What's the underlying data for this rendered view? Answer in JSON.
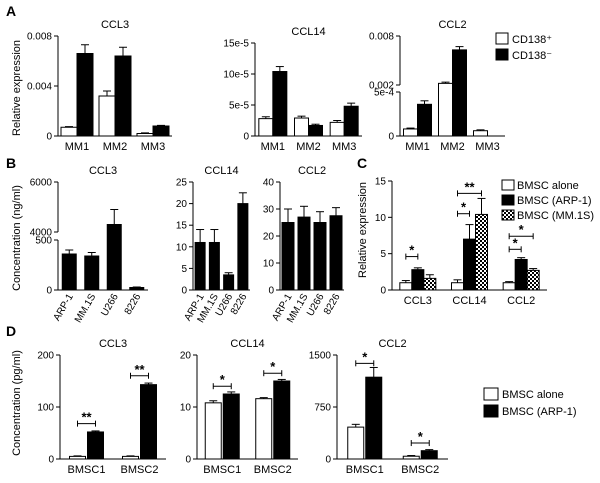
{
  "panels": {
    "A": {
      "label": "A",
      "ylabel": "Relative expression",
      "legend": [
        {
          "name": "CD138⁺",
          "style": "open"
        },
        {
          "name": "CD138⁻",
          "style": "filled"
        }
      ]
    },
    "B": {
      "label": "B",
      "ylabel": "Concentration (ng/ml)"
    },
    "C": {
      "label": "C",
      "ylabel": "Relative expression",
      "legend": [
        {
          "name": "BMSC alone",
          "style": "open"
        },
        {
          "name": "BMSC (ARP-1)",
          "style": "filled"
        },
        {
          "name": "BMSC (MM.1S)",
          "style": "checker"
        }
      ]
    },
    "D": {
      "label": "D",
      "ylabel": "Concentration (pg/ml)",
      "legend": [
        {
          "name": "BMSC alone",
          "style": "open"
        },
        {
          "name": "BMSC (ARP-1)",
          "style": "filled"
        }
      ]
    }
  },
  "chart_data": [
    {
      "id": "A1",
      "panel": "A",
      "type": "bar",
      "title": "CCL3",
      "categories": [
        "MM1",
        "MM2",
        "MM3"
      ],
      "series": [
        {
          "name": "CD138⁺",
          "values": [
            0.0007,
            0.0032,
            0.0002
          ],
          "errors": [
            5e-05,
            0.0004,
            5e-05
          ]
        },
        {
          "name": "CD138⁻",
          "values": [
            0.0066,
            0.0064,
            0.0008
          ],
          "errors": [
            0.0007,
            0.0007,
            5e-05
          ]
        }
      ],
      "ylim": [
        0,
        0.008
      ],
      "yticks": [
        0,
        0.004,
        0.008
      ],
      "yticklabels": [
        "0",
        "0.004",
        "0.008"
      ]
    },
    {
      "id": "A2",
      "panel": "A",
      "type": "bar",
      "title": "CCL14",
      "categories": [
        "MM1",
        "MM2",
        "MM3"
      ],
      "series": [
        {
          "name": "CD138⁺",
          "values": [
            2.8e-05,
            2.9e-05,
            2.2e-05
          ],
          "errors": [
            3e-06,
            3e-06,
            3e-06
          ]
        },
        {
          "name": "CD138⁻",
          "values": [
            0.000104,
            1.7e-05,
            4.8e-05
          ],
          "errors": [
            8e-06,
            2e-06,
            5e-06
          ]
        }
      ],
      "ylim": [
        0,
        0.00015
      ],
      "yticks": [
        0,
        5e-05,
        0.0001,
        0.00015
      ],
      "yticklabels": [
        "0",
        "5e-5",
        "10e-5",
        "15e-5"
      ]
    },
    {
      "id": "A3",
      "panel": "A",
      "type": "bar",
      "title": "CCL2",
      "broken_axis": true,
      "categories": [
        "MM1",
        "MM2",
        "MM3"
      ],
      "series": [
        {
          "name": "CD138⁺",
          "values": [
            8e-05,
            0.0022,
            6e-05
          ],
          "errors": [
            1e-05,
            0.00015,
            1e-05
          ]
        },
        {
          "name": "CD138⁻",
          "values": [
            0.00036,
            0.0063,
            null
          ],
          "errors": [
            4e-05,
            0.0004,
            null
          ]
        }
      ],
      "yticklabels": [
        "0",
        "5e-4",
        "0.002",
        "0.008"
      ]
    },
    {
      "id": "B1",
      "panel": "B",
      "type": "bar",
      "title": "CCL3",
      "broken_axis": true,
      "categories": [
        "ARP-1",
        "MM.1S",
        "U266",
        "8226"
      ],
      "series": [
        {
          "name": "",
          "values": [
            360,
            340,
            4300,
            25
          ],
          "errors": [
            40,
            35,
            600,
            5
          ]
        }
      ],
      "yticklabels": [
        "0",
        "500",
        "4000",
        "6000"
      ]
    },
    {
      "id": "B2",
      "panel": "B",
      "type": "bar",
      "title": "CCL14",
      "categories": [
        "ARP-1",
        "MM.1S",
        "U266",
        "8226"
      ],
      "series": [
        {
          "name": "",
          "values": [
            11,
            11,
            3.5,
            20
          ],
          "errors": [
            3,
            3,
            0.5,
            2.5
          ]
        }
      ],
      "ylim": [
        0,
        25
      ],
      "yticks": [
        0,
        5,
        10,
        15,
        20,
        25
      ],
      "yticklabels": [
        "0",
        "5",
        "10",
        "15",
        "20",
        "25"
      ]
    },
    {
      "id": "B3",
      "panel": "B",
      "type": "bar",
      "title": "CCL2",
      "categories": [
        "ARP-1",
        "MM.1S",
        "U266",
        "8226"
      ],
      "series": [
        {
          "name": "",
          "values": [
            25,
            27,
            25,
            27.5
          ],
          "errors": [
            5,
            4,
            4,
            3
          ]
        }
      ],
      "ylim": [
        0,
        40
      ],
      "yticks": [
        0,
        10,
        20,
        30,
        40
      ],
      "yticklabels": [
        "0",
        "10",
        "20",
        "30",
        "40"
      ]
    },
    {
      "id": "C1",
      "panel": "C",
      "type": "bar",
      "title": "",
      "categories": [
        "CCL3",
        "CCL14",
        "CCL2"
      ],
      "series": [
        {
          "name": "BMSC alone",
          "values": [
            1,
            1,
            1
          ],
          "errors": [
            0.3,
            0.4,
            0.15
          ]
        },
        {
          "name": "BMSC (ARP-1)",
          "values": [
            2.8,
            7,
            4.2
          ],
          "errors": [
            0.25,
            2,
            0.25
          ]
        },
        {
          "name": "BMSC (MM.1S)",
          "values": [
            1.6,
            10.4,
            2.7
          ],
          "errors": [
            0.5,
            2.2,
            0.25
          ]
        }
      ],
      "ylim": [
        0,
        15
      ],
      "yticks": [
        0,
        5,
        10,
        15
      ],
      "yticklabels": [
        "0",
        "5",
        "10",
        "15"
      ],
      "significance": [
        {
          "group": 0,
          "from": 0,
          "to": 1,
          "y": 4.6,
          "text": "*"
        },
        {
          "group": 1,
          "from": 0,
          "to": 1,
          "y": 10.5,
          "text": "*"
        },
        {
          "group": 1,
          "from": 0,
          "to": 2,
          "y": 13.3,
          "text": "**"
        },
        {
          "group": 2,
          "from": 0,
          "to": 1,
          "y": 5.6,
          "text": "*"
        },
        {
          "group": 2,
          "from": 0,
          "to": 2,
          "y": 7.4,
          "text": "*"
        }
      ]
    },
    {
      "id": "D1",
      "panel": "D",
      "type": "bar",
      "title": "CCL3",
      "categories": [
        "BMSC1",
        "BMSC2"
      ],
      "series": [
        {
          "name": "BMSC alone",
          "values": [
            5,
            5
          ],
          "errors": [
            1,
            1
          ]
        },
        {
          "name": "BMSC (ARP-1)",
          "values": [
            52,
            143
          ],
          "errors": [
            2,
            3
          ]
        }
      ],
      "ylim": [
        0,
        200
      ],
      "yticks": [
        0,
        100,
        200
      ],
      "yticklabels": [
        "0",
        "100",
        "200"
      ],
      "significance": [
        {
          "group": 0,
          "from": 0,
          "to": 1,
          "y": 68,
          "text": "**"
        },
        {
          "group": 1,
          "from": 0,
          "to": 1,
          "y": 160,
          "text": "**"
        }
      ]
    },
    {
      "id": "D2",
      "panel": "D",
      "type": "bar",
      "title": "CCL14",
      "categories": [
        "BMSC1",
        "BMSC2"
      ],
      "series": [
        {
          "name": "BMSC alone",
          "values": [
            10.8,
            11.6
          ],
          "errors": [
            0.4,
            0.2
          ]
        },
        {
          "name": "BMSC (ARP-1)",
          "values": [
            12.5,
            15
          ],
          "errors": [
            0.4,
            0.3
          ]
        }
      ],
      "ylim": [
        0,
        20
      ],
      "yticks": [
        0,
        10,
        20
      ],
      "yticklabels": [
        "0",
        "10",
        "20"
      ],
      "significance": [
        {
          "group": 0,
          "from": 0,
          "to": 1,
          "y": 14,
          "text": "*"
        },
        {
          "group": 1,
          "from": 0,
          "to": 1,
          "y": 16.5,
          "text": "*"
        }
      ]
    },
    {
      "id": "D3",
      "panel": "D",
      "type": "bar",
      "title": "CCL2",
      "categories": [
        "BMSC1",
        "BMSC2"
      ],
      "series": [
        {
          "name": "BMSC alone",
          "values": [
            460,
            40
          ],
          "errors": [
            40,
            10
          ]
        },
        {
          "name": "BMSC (ARP-1)",
          "values": [
            1180,
            120
          ],
          "errors": [
            140,
            15
          ]
        }
      ],
      "ylim": [
        0,
        1500
      ],
      "yticks": [
        0,
        750,
        1500
      ],
      "yticklabels": [
        "0",
        "750",
        "1500"
      ],
      "significance": [
        {
          "group": 0,
          "from": 0,
          "to": 1,
          "y": 1380,
          "text": "*"
        },
        {
          "group": 1,
          "from": 0,
          "to": 1,
          "y": 230,
          "text": "*"
        }
      ]
    }
  ]
}
